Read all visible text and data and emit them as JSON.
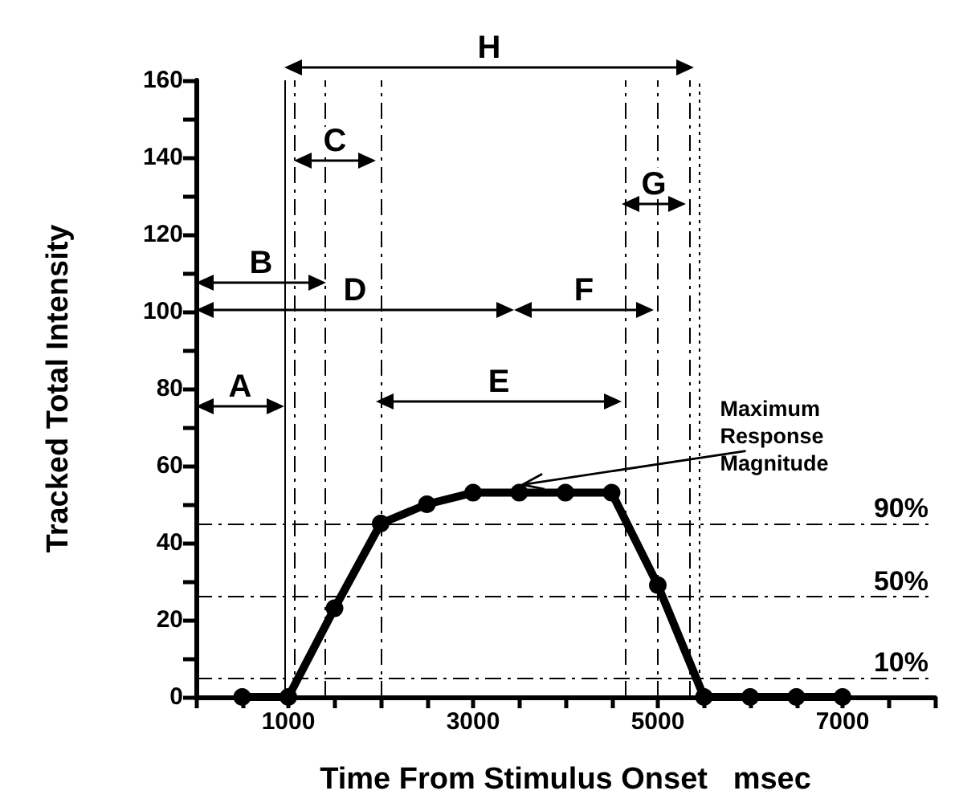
{
  "chart_data": {
    "type": "line",
    "xlabel": "Time From Stimulus Onset   msec",
    "ylabel": "Tracked Total Intensity",
    "x": [
      500,
      1000,
      1500,
      2000,
      2500,
      3000,
      3500,
      4000,
      4500,
      5000,
      5500,
      6000,
      6500,
      7000
    ],
    "series": [
      {
        "color": "#000000",
        "values": [
          0,
          0,
          23,
          45,
          50,
          53,
          53,
          53,
          53,
          29,
          0,
          0,
          0,
          0
        ]
      }
    ],
    "marker": "circle",
    "line_style": "solid",
    "grid": false,
    "xlim": [
      0,
      8000
    ],
    "xticks": [
      {
        "value": 0,
        "label": null
      },
      {
        "value": 500,
        "label": null
      },
      1000,
      {
        "value": 1500,
        "label": null
      },
      {
        "value": 2000,
        "label": null
      },
      {
        "value": 2500,
        "label": null
      },
      3000,
      {
        "value": 3500,
        "label": null
      },
      {
        "value": 4000,
        "label": null
      },
      {
        "value": 4500,
        "label": null
      },
      5000,
      {
        "value": 5500,
        "label": null
      },
      {
        "value": 6000,
        "label": null
      },
      {
        "value": 6500,
        "label": null
      },
      7000,
      {
        "value": 7500,
        "label": null
      },
      {
        "value": 8000,
        "label": null
      }
    ],
    "ylim": [
      0,
      160
    ],
    "yticks": [
      0,
      {
        "value": 10,
        "label": null
      },
      20,
      {
        "value": 30,
        "label": null
      },
      40,
      {
        "value": 50,
        "label": null
      },
      60,
      {
        "value": 70,
        "label": null
      },
      80,
      {
        "value": 90,
        "label": null
      },
      100,
      {
        "value": 110,
        "label": null
      },
      120,
      {
        "value": 130,
        "label": null
      },
      140,
      {
        "value": 150,
        "label": null
      },
      160
    ],
    "ref_lines": [
      {
        "axis": "y",
        "value": 45,
        "line_style": "dashed"
      },
      {
        "axis": "y",
        "value": 26,
        "line_style": "dashed"
      },
      {
        "axis": "y",
        "value": 5,
        "line_style": "dashed"
      },
      {
        "axis": "x",
        "value": 960,
        "line_style": "solid"
      },
      {
        "axis": "x",
        "value": 1070,
        "line_style": "dashed"
      },
      {
        "axis": "x",
        "value": 1400,
        "line_style": "dashed"
      },
      {
        "axis": "x",
        "value": 2000,
        "line_style": "dashed"
      },
      {
        "axis": "x",
        "value": 4650,
        "line_style": "dashed"
      },
      {
        "axis": "x",
        "value": 5000,
        "line_style": "dashed"
      },
      {
        "axis": "x",
        "value": 5350,
        "line_style": "dashed"
      },
      {
        "axis": "x",
        "value": 5440,
        "line_style": "dotted"
      }
    ],
    "annotations": [
      "A",
      "B",
      "C",
      "D",
      "E",
      "F",
      "G",
      "H",
      "90%",
      "50%",
      "10%",
      {
        "text": "Maximum\nResponse\nMagnitude",
        "x": 3500,
        "y": 53
      }
    ]
  }
}
